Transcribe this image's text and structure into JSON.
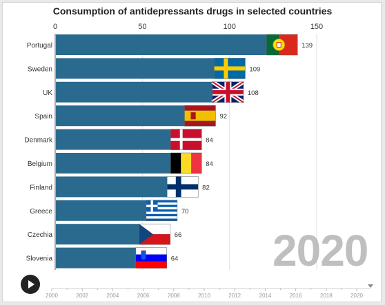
{
  "chart_data": {
    "type": "bar",
    "title": "Consumption of antidepressants drugs in selected countries",
    "categories": [
      "Portugal",
      "Sweden",
      "UK",
      "Spain",
      "Denmark",
      "Belgium",
      "Finland",
      "Greece",
      "Czechia",
      "Slovenia"
    ],
    "values": [
      139,
      109,
      108,
      92,
      84,
      84,
      82,
      70,
      66,
      64
    ],
    "xlim": [
      0,
      150
    ],
    "x_ticks": [
      "0",
      "50",
      "100",
      "150"
    ],
    "bar_color": "#2b6a8f",
    "grid": true,
    "year_label": "2020",
    "timeline": {
      "ticks": [
        "2000",
        "2002",
        "2004",
        "2006",
        "2008",
        "2010",
        "2012",
        "2014",
        "2016",
        "2018",
        "2020"
      ],
      "current": 2020
    }
  },
  "flags": [
    "portugal-flag-icon",
    "sweden-flag-icon",
    "uk-flag-icon",
    "spain-flag-icon",
    "denmark-flag-icon",
    "belgium-flag-icon",
    "finland-flag-icon",
    "greece-flag-icon",
    "czechia-flag-icon",
    "slovenia-flag-icon"
  ]
}
